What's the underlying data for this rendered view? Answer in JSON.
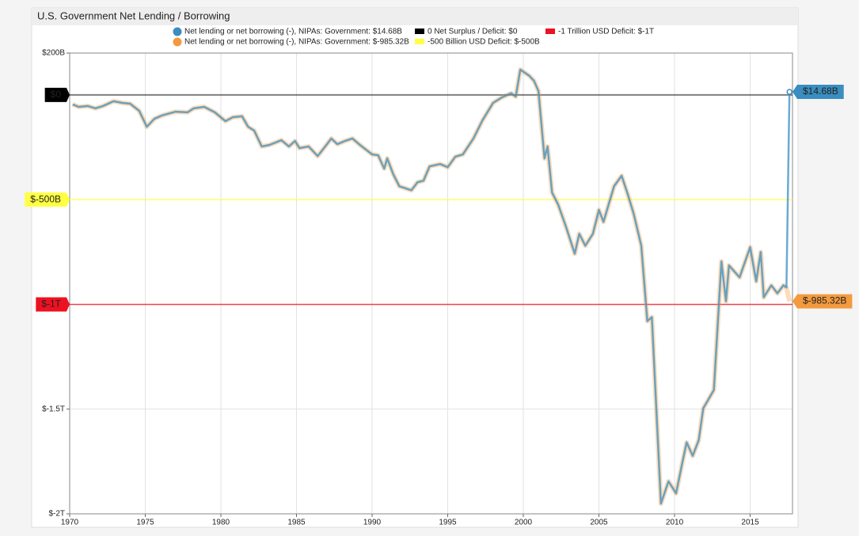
{
  "chart_data": {
    "type": "line",
    "title": "U.S. Government Net Lending / Borrowing",
    "x": [
      1970.2,
      1970.6,
      1971.2,
      1971.7,
      1972.2,
      1972.9,
      1973.5,
      1974.0,
      1974.6,
      1975.1,
      1975.6,
      1976.1,
      1977.0,
      1977.8,
      1978.2,
      1978.9,
      1979.6,
      1980.3,
      1980.8,
      1981.4,
      1981.8,
      1982.2,
      1982.7,
      1983.2,
      1984.0,
      1984.5,
      1984.9,
      1985.2,
      1985.8,
      1986.4,
      1986.9,
      1987.3,
      1987.7,
      1988.2,
      1988.7,
      1989.2,
      1990.0,
      1990.4,
      1990.8,
      1991.0,
      1991.4,
      1991.8,
      1992.6,
      1993.0,
      1993.4,
      1993.8,
      1994.5,
      1995.0,
      1995.5,
      1996.0,
      1996.7,
      1997.3,
      1998.0,
      1998.6,
      1999.2,
      1999.5,
      1999.8,
      2000.4,
      2000.7,
      2001.0,
      2001.4,
      2001.6,
      2001.9,
      2002.3,
      2002.8,
      2003.4,
      2003.7,
      2004.1,
      2004.6,
      2005.0,
      2005.3,
      2006.0,
      2006.5,
      2006.9,
      2007.3,
      2007.8,
      2008.2,
      2008.5,
      2009.1,
      2009.6,
      2010.1,
      2010.5,
      2010.8,
      2011.2,
      2011.6,
      2011.9,
      2012.6,
      2013.1,
      2013.4,
      2013.6,
      2014.3,
      2015.0,
      2015.4,
      2015.7,
      2015.9,
      2016.4,
      2016.8,
      2017.2,
      2017.4,
      2017.6
    ],
    "series": [
      {
        "name": "Net lending or net borrowing (-), NIPAs: Government: $14.68B",
        "color": "#3a8dbf",
        "last_value_label": "$14.68B",
        "values": [
          -45,
          -57,
          -53,
          -64,
          -53,
          -30,
          -38,
          -42,
          -76,
          -152,
          -114,
          -98,
          -80,
          -83,
          -64,
          -57,
          -83,
          -125,
          -106,
          -102,
          -152,
          -170,
          -246,
          -239,
          -216,
          -246,
          -220,
          -254,
          -246,
          -292,
          -246,
          -208,
          -235,
          -220,
          -208,
          -239,
          -284,
          -288,
          -352,
          -303,
          -379,
          -436,
          -455,
          -417,
          -409,
          -341,
          -330,
          -345,
          -295,
          -284,
          -208,
          -121,
          -38,
          -11,
          8,
          -8,
          121,
          91,
          68,
          19,
          -303,
          -246,
          -466,
          -523,
          -625,
          -758,
          -663,
          -720,
          -663,
          -549,
          -606,
          -436,
          -386,
          -473,
          -568,
          -720,
          -1080,
          -1061,
          -1951,
          -1845,
          -1902,
          -1761,
          -1659,
          -1723,
          -1648,
          -1496,
          -1409,
          -795,
          -985,
          -814,
          -871,
          -727,
          -890,
          -750,
          -966,
          -909,
          -947,
          -909,
          -920,
          14.68
        ]
      },
      {
        "name": "Net lending or net borrowing (-), NIPAs: Government: $-985.32B",
        "color": "#f39a3e",
        "last_value_label": "$-985.32B",
        "values": [
          -45,
          -57,
          -53,
          -64,
          -53,
          -30,
          -38,
          -42,
          -76,
          -152,
          -114,
          -98,
          -80,
          -83,
          -64,
          -57,
          -83,
          -125,
          -106,
          -102,
          -152,
          -170,
          -246,
          -239,
          -216,
          -246,
          -220,
          -254,
          -246,
          -292,
          -246,
          -208,
          -235,
          -220,
          -208,
          -239,
          -284,
          -288,
          -352,
          -303,
          -379,
          -436,
          -455,
          -417,
          -409,
          -341,
          -330,
          -345,
          -295,
          -284,
          -208,
          -121,
          -38,
          -11,
          8,
          -8,
          121,
          91,
          68,
          19,
          -303,
          -246,
          -466,
          -523,
          -625,
          -758,
          -663,
          -720,
          -663,
          -549,
          -606,
          -436,
          -386,
          -473,
          -568,
          -720,
          -1080,
          -1061,
          -1951,
          -1845,
          -1902,
          -1761,
          -1659,
          -1723,
          -1648,
          -1496,
          -1409,
          -795,
          -985,
          -814,
          -871,
          -727,
          -890,
          -750,
          -966,
          -909,
          -947,
          -909,
          -920,
          -985.32
        ]
      }
    ],
    "reference_lines": [
      {
        "name": "0 Net Surplus / Deficit: $0",
        "color": "#000000",
        "value": 0,
        "value_label": "$0"
      },
      {
        "name": "-500 Billion USD Deficit: $-500B",
        "color": "#ffff44",
        "value": -500,
        "value_label": "$-500B"
      },
      {
        "name": "-1 Trillion USD Deficit: $-1T",
        "color": "#ee1122",
        "value": -1000,
        "value_label": "$-1T"
      }
    ],
    "xlim": [
      1970,
      2017.8
    ],
    "xticks": [
      1970,
      1975,
      1980,
      1985,
      1990,
      1995,
      2000,
      2005,
      2010,
      2015
    ],
    "ylim": [
      -2000,
      200
    ],
    "yticks": [
      {
        "value": 200,
        "label": "$200B"
      },
      {
        "value": -1500,
        "label": "$-1.5T"
      },
      {
        "value": -2000,
        "label": "$-2T"
      }
    ],
    "grid": true
  }
}
